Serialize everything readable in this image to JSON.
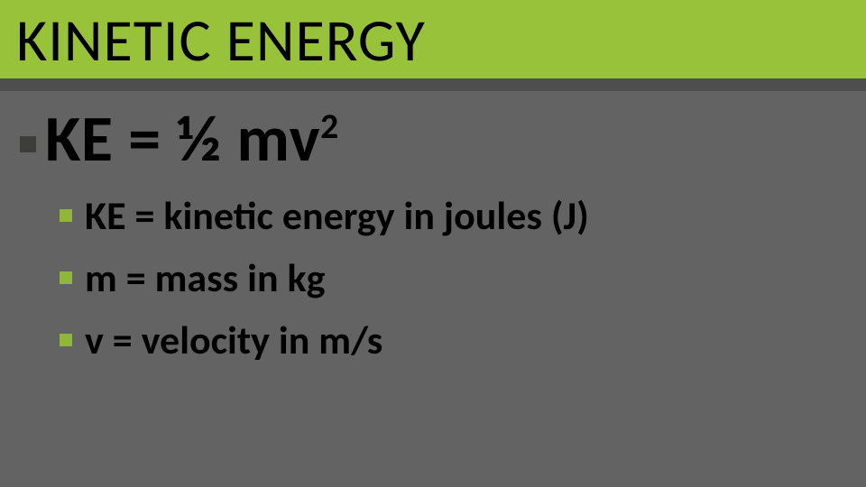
{
  "colors": {
    "slide_bg": "#636363",
    "title_band_bg": "#99c23b",
    "thin_band_bg": "#4e4e4e",
    "title_text": "#000000",
    "body_text": "#000000",
    "bullet_l1": "#3d3d3c",
    "bullet_l2": "#8fb83a"
  },
  "title": "KINETIC ENERGY",
  "formula": {
    "base": "KE = ½ mv",
    "exponent": "2"
  },
  "definitions": [
    "KE = kinetic energy in joules (J)",
    "m = mass in kg",
    "v = velocity in m/s"
  ]
}
